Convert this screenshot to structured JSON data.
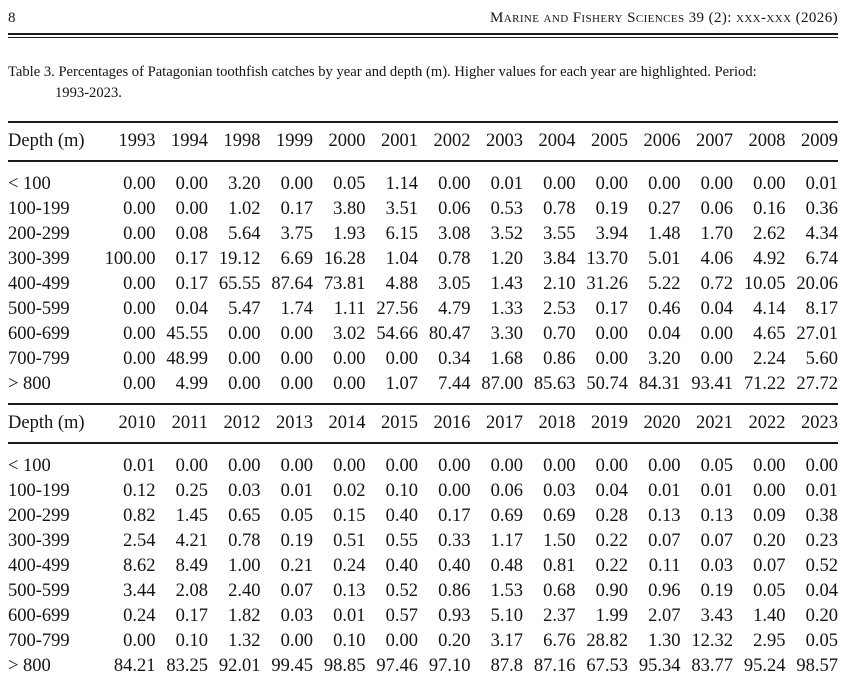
{
  "page": {
    "page_number": "8",
    "running_head": "Marine and Fishery Sciences 39 (2): xxx-xxx (2026)"
  },
  "caption": {
    "line1": "Table 3. Percentages of Patagonian toothfish catches by year and depth (m). Higher values for each year are highlighted. Period:",
    "line2": "1993-2023."
  },
  "tables": [
    {
      "columns": [
        "Depth (m)",
        "1993",
        "1994",
        "1998",
        "1999",
        "2000",
        "2001",
        "2002",
        "2003",
        "2004",
        "2005",
        "2006",
        "2007",
        "2008",
        "2009"
      ],
      "rows": [
        {
          "depth": "< 100",
          "values": [
            "0.00",
            "0.00",
            "3.20",
            "0.00",
            "0.05",
            "1.14",
            "0.00",
            "0.01",
            "0.00",
            "0.00",
            "0.00",
            "0.00",
            "0.00",
            "0.01"
          ]
        },
        {
          "depth": "100-199",
          "values": [
            "0.00",
            "0.00",
            "1.02",
            "0.17",
            "3.80",
            "3.51",
            "0.06",
            "0.53",
            "0.78",
            "0.19",
            "0.27",
            "0.06",
            "0.16",
            "0.36"
          ]
        },
        {
          "depth": "200-299",
          "values": [
            "0.00",
            "0.08",
            "5.64",
            "3.75",
            "1.93",
            "6.15",
            "3.08",
            "3.52",
            "3.55",
            "3.94",
            "1.48",
            "1.70",
            "2.62",
            "4.34"
          ]
        },
        {
          "depth": "300-399",
          "values": [
            "100.00",
            "0.17",
            "19.12",
            "6.69",
            "16.28",
            "1.04",
            "0.78",
            "1.20",
            "3.84",
            "13.70",
            "5.01",
            "4.06",
            "4.92",
            "6.74"
          ]
        },
        {
          "depth": "400-499",
          "values": [
            "0.00",
            "0.17",
            "65.55",
            "87.64",
            "73.81",
            "4.88",
            "3.05",
            "1.43",
            "2.10",
            "31.26",
            "5.22",
            "0.72",
            "10.05",
            "20.06"
          ]
        },
        {
          "depth": "500-599",
          "values": [
            "0.00",
            "0.04",
            "5.47",
            "1.74",
            "1.11",
            "27.56",
            "4.79",
            "1.33",
            "2.53",
            "0.17",
            "0.46",
            "0.04",
            "4.14",
            "8.17"
          ]
        },
        {
          "depth": "600-699",
          "values": [
            "0.00",
            "45.55",
            "0.00",
            "0.00",
            "3.02",
            "54.66",
            "80.47",
            "3.30",
            "0.70",
            "0.00",
            "0.04",
            "0.00",
            "4.65",
            "27.01"
          ]
        },
        {
          "depth": "700-799",
          "values": [
            "0.00",
            "48.99",
            "0.00",
            "0.00",
            "0.00",
            "0.00",
            "0.34",
            "1.68",
            "0.86",
            "0.00",
            "3.20",
            "0.00",
            "2.24",
            "5.60"
          ]
        },
        {
          "depth": "> 800",
          "values": [
            "0.00",
            "4.99",
            "0.00",
            "0.00",
            "0.00",
            "1.07",
            "7.44",
            "87.00",
            "85.63",
            "50.74",
            "84.31",
            "93.41",
            "71.22",
            "27.72"
          ]
        }
      ]
    },
    {
      "columns": [
        "Depth (m)",
        "2010",
        "2011",
        "2012",
        "2013",
        "2014",
        "2015",
        "2016",
        "2017",
        "2018",
        "2019",
        "2020",
        "2021",
        "2022",
        "2023"
      ],
      "rows": [
        {
          "depth": "< 100",
          "values": [
            "0.01",
            "0.00",
            "0.00",
            "0.00",
            "0.00",
            "0.00",
            "0.00",
            "0.00",
            "0.00",
            "0.00",
            "0.00",
            "0.05",
            "0.00",
            "0.00"
          ]
        },
        {
          "depth": "100-199",
          "values": [
            "0.12",
            "0.25",
            "0.03",
            "0.01",
            "0.02",
            "0.10",
            "0.00",
            "0.06",
            "0.03",
            "0.04",
            "0.01",
            "0.01",
            "0.00",
            "0.01"
          ]
        },
        {
          "depth": "200-299",
          "values": [
            "0.82",
            "1.45",
            "0.65",
            "0.05",
            "0.15",
            "0.40",
            "0.17",
            "0.69",
            "0.69",
            "0.28",
            "0.13",
            "0.13",
            "0.09",
            "0.38"
          ]
        },
        {
          "depth": "300-399",
          "values": [
            "2.54",
            "4.21",
            "0.78",
            "0.19",
            "0.51",
            "0.55",
            "0.33",
            "1.17",
            "1.50",
            "0.22",
            "0.07",
            "0.07",
            "0.20",
            "0.23"
          ]
        },
        {
          "depth": "400-499",
          "values": [
            "8.62",
            "8.49",
            "1.00",
            "0.21",
            "0.24",
            "0.40",
            "0.40",
            "0.48",
            "0.81",
            "0.22",
            "0.11",
            "0.03",
            "0.07",
            "0.52"
          ]
        },
        {
          "depth": "500-599",
          "values": [
            "3.44",
            "2.08",
            "2.40",
            "0.07",
            "0.13",
            "0.52",
            "0.86",
            "1.53",
            "0.68",
            "0.90",
            "0.96",
            "0.19",
            "0.05",
            "0.04"
          ]
        },
        {
          "depth": "600-699",
          "values": [
            "0.24",
            "0.17",
            "1.82",
            "0.03",
            "0.01",
            "0.57",
            "0.93",
            "5.10",
            "2.37",
            "1.99",
            "2.07",
            "3.43",
            "1.40",
            "0.20"
          ]
        },
        {
          "depth": "700-799",
          "values": [
            "0.00",
            "0.10",
            "1.32",
            "0.00",
            "0.10",
            "0.00",
            "0.20",
            "3.17",
            "6.76",
            "28.82",
            "1.30",
            "12.32",
            "2.95",
            "0.05"
          ]
        },
        {
          "depth": "> 800",
          "values": [
            "84.21",
            "83.25",
            "92.01",
            "99.45",
            "98.85",
            "97.46",
            "97.10",
            "87.8",
            "87.16",
            "67.53",
            "95.34",
            "83.77",
            "95.24",
            "98.57"
          ]
        }
      ]
    }
  ]
}
